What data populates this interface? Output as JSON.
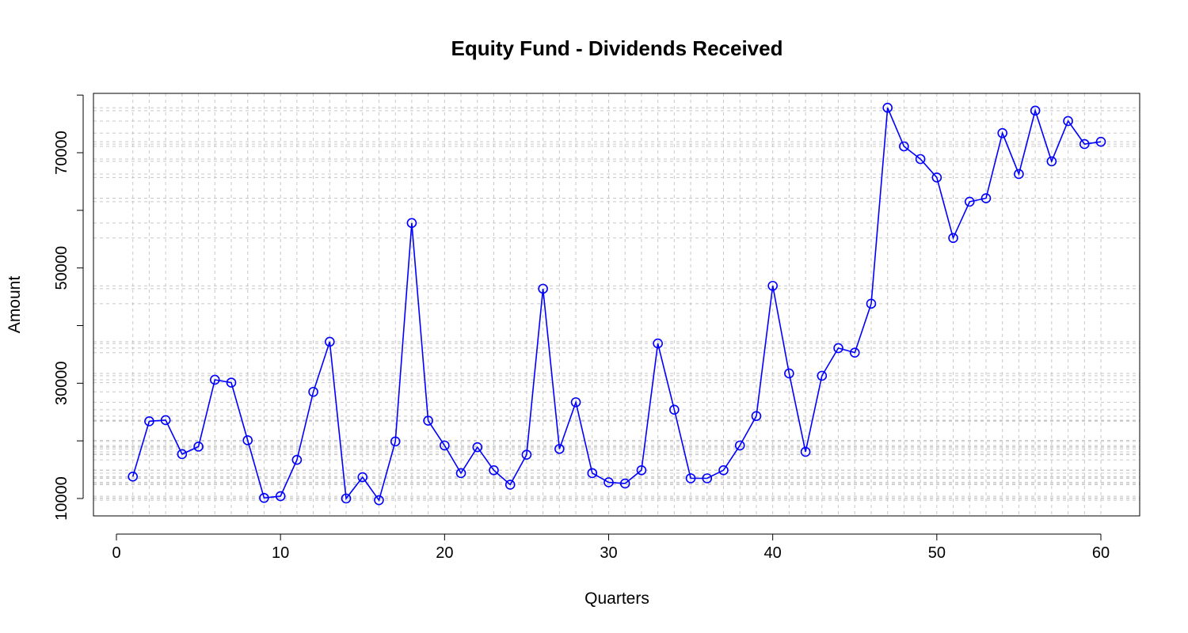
{
  "chart_data": {
    "type": "line",
    "title": "Equity Fund - Dividends Received",
    "xlabel": "Quarters",
    "ylabel": "Amount",
    "xlim": [
      0,
      62
    ],
    "ylim": [
      7000,
      80000
    ],
    "xticks": [
      0,
      10,
      20,
      30,
      40,
      50,
      60
    ],
    "yticks": [
      10000,
      30000,
      50000,
      70000
    ],
    "grid": "on",
    "color": "#0000ff",
    "series": [
      {
        "x": [
          1,
          2,
          3,
          4,
          5,
          6,
          7,
          8,
          9,
          10,
          11,
          12,
          13,
          14,
          15,
          16,
          17,
          18,
          19,
          20,
          21,
          22,
          23,
          24,
          25,
          26,
          27,
          28,
          29,
          30,
          31,
          32,
          33,
          34,
          35,
          36,
          37,
          38,
          39,
          40,
          41,
          42,
          43,
          44,
          45,
          46,
          47,
          48,
          49,
          50,
          51,
          52,
          53,
          54,
          55,
          56,
          57,
          58,
          59,
          60
        ],
        "values": [
          13800,
          23400,
          23600,
          17700,
          19000,
          30600,
          30100,
          20100,
          10100,
          10400,
          16700,
          28500,
          37200,
          10000,
          13700,
          9700,
          19900,
          57800,
          23500,
          19200,
          14400,
          18900,
          14900,
          12400,
          17600,
          46400,
          18600,
          26700,
          14400,
          12800,
          12600,
          14900,
          36900,
          25400,
          13500,
          13500,
          14900,
          19200,
          24300,
          46900,
          31700,
          18100,
          31300,
          36100,
          35300,
          43800,
          77800,
          71100,
          68900,
          65700,
          55200,
          61500,
          62100,
          73400,
          66300,
          77300,
          68500,
          75500,
          71500,
          71900
        ]
      }
    ]
  }
}
